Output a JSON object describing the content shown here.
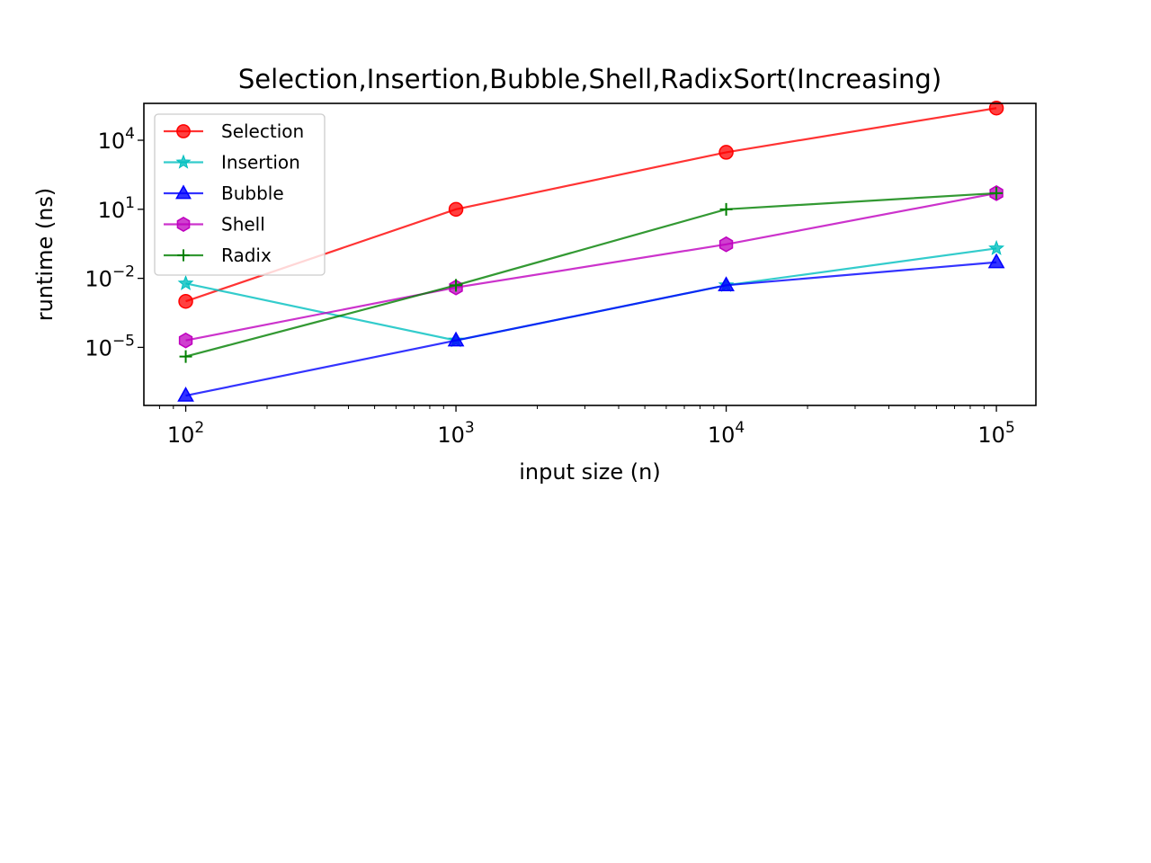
{
  "chart_data": {
    "type": "line",
    "title": "Selection,Insertion,Bubble,Shell,RadixSort(Increasing)",
    "xlabel": "input size (n)",
    "ylabel": "runtime (ns)",
    "x_scale": "log",
    "y_scale": "log",
    "xlim": [
      70,
      140000
    ],
    "ylim": [
      3e-08,
      400000
    ],
    "x_ticks": [
      {
        "value": 100,
        "base": "10",
        "exp": "2"
      },
      {
        "value": 1000,
        "base": "10",
        "exp": "3"
      },
      {
        "value": 10000,
        "base": "10",
        "exp": "4"
      },
      {
        "value": 100000,
        "base": "10",
        "exp": "5"
      }
    ],
    "y_ticks": [
      {
        "value": 1e-05,
        "base": "10",
        "exp": "−5"
      },
      {
        "value": 0.01,
        "base": "10",
        "exp": "−2"
      },
      {
        "value": 10,
        "base": "10",
        "exp": "1"
      },
      {
        "value": 10000,
        "base": "10",
        "exp": "4"
      }
    ],
    "x": [
      100,
      1000,
      10000,
      100000
    ],
    "legend_position": "upper-left",
    "grid": false,
    "series": [
      {
        "name": "Selection",
        "color": "#ff0000",
        "marker": "circle",
        "values": [
          0.001,
          10,
          3000,
          250000
        ]
      },
      {
        "name": "Insertion",
        "color": "#00bfbf",
        "marker": "star",
        "values": [
          0.006,
          2e-05,
          0.005,
          0.2
        ]
      },
      {
        "name": "Bubble",
        "color": "#0000ff",
        "marker": "triangle",
        "values": [
          8e-08,
          2e-05,
          0.005,
          0.05
        ]
      },
      {
        "name": "Shell",
        "color": "#bf00bf",
        "marker": "hexagon",
        "values": [
          2e-05,
          0.004,
          0.3,
          50
        ]
      },
      {
        "name": "Radix",
        "color": "#008000",
        "marker": "plus",
        "values": [
          4e-06,
          0.005,
          10,
          50
        ]
      }
    ]
  }
}
